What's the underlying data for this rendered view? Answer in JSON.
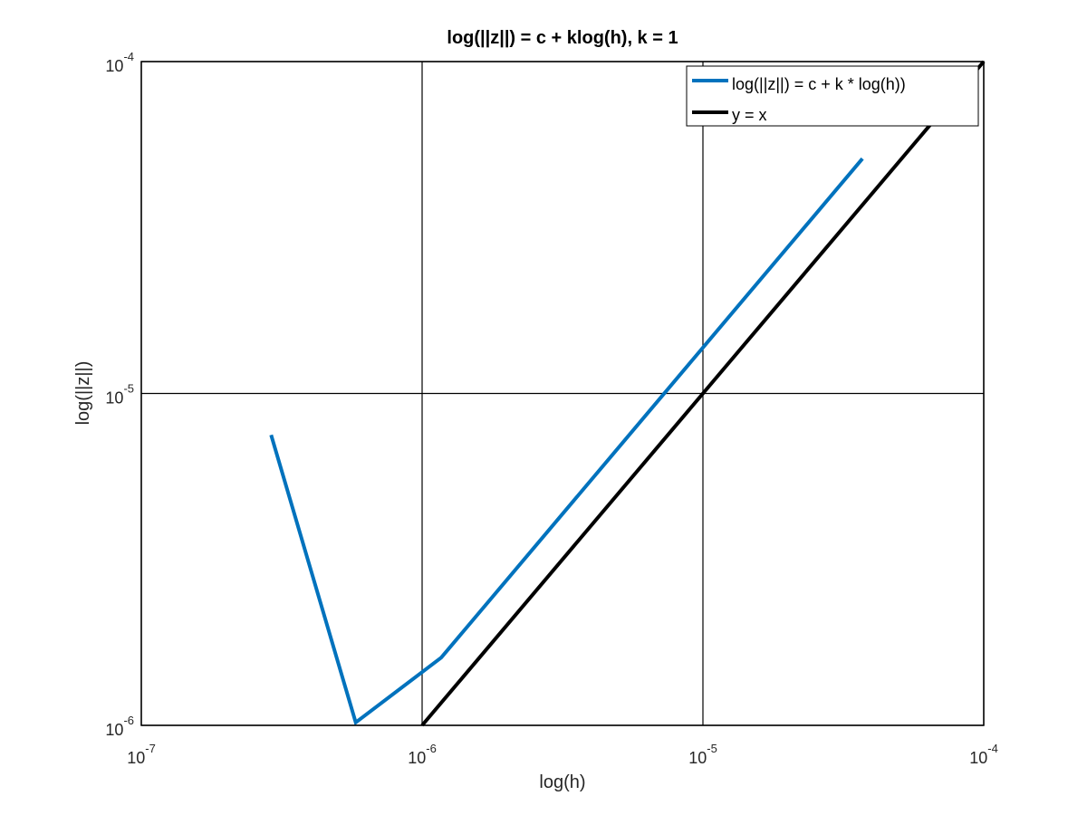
{
  "chart_data": {
    "type": "line",
    "title": "log(||z||) = c + klog(h), k = 1",
    "xlabel": "log(h)",
    "ylabel": "log(||z||)",
    "xscale": "log",
    "yscale": "log",
    "xlim": [
      1e-07,
      0.0001
    ],
    "ylim": [
      1e-06,
      0.0001
    ],
    "grid": true,
    "x_ticks": [
      {
        "base": "10",
        "exp": "-7",
        "value": 1e-07
      },
      {
        "base": "10",
        "exp": "-6",
        "value": 1e-06
      },
      {
        "base": "10",
        "exp": "-5",
        "value": 1e-05
      },
      {
        "base": "10",
        "exp": "-4",
        "value": 0.0001
      }
    ],
    "y_ticks": [
      {
        "base": "10",
        "exp": "-6",
        "value": 1e-06
      },
      {
        "base": "10",
        "exp": "-5",
        "value": 1e-05
      },
      {
        "base": "10",
        "exp": "-4",
        "value": 0.0001
      }
    ],
    "legend_position": "top-right",
    "series": [
      {
        "name": "log(||z||) = c + k * log(h))",
        "color": "#0072BD",
        "points": [
          {
            "x": 2.9e-07,
            "y": 7.5e-06
          },
          {
            "x": 5.8e-07,
            "y": 1.02e-06
          },
          {
            "x": 1.17e-06,
            "y": 1.6e-06
          },
          {
            "x": 3.7e-05,
            "y": 5.1e-05
          }
        ]
      },
      {
        "name": "y = x",
        "color": "#000000",
        "points": [
          {
            "x": 1e-06,
            "y": 1e-06
          },
          {
            "x": 0.0001,
            "y": 0.0001
          }
        ]
      }
    ]
  }
}
